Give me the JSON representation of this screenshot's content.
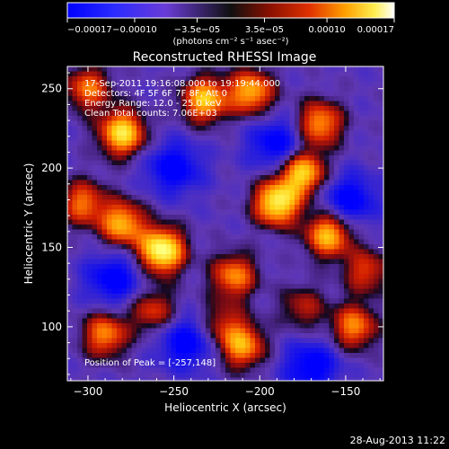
{
  "chart_data": {
    "type": "heatmap",
    "title": "Reconstructed RHESSI Image",
    "xlabel": "Heliocentric X (arcsec)",
    "ylabel": "Heliocentric Y (arcsec)",
    "xlim": [
      -312,
      -128
    ],
    "ylim": [
      66,
      264
    ],
    "x_ticks": [
      -300,
      -250,
      -200,
      -150
    ],
    "x_tick_labels": [
      "−300",
      "−250",
      "−200",
      "−150"
    ],
    "y_ticks": [
      100,
      150,
      200,
      250
    ],
    "y_tick_labels": [
      "100",
      "150",
      "200",
      "250"
    ],
    "colorbar": {
      "range": [
        -0.00017,
        0.00017
      ],
      "ticks": [
        -0.00017,
        -0.0001,
        -3.5e-05,
        3.5e-05,
        0.0001,
        0.00017
      ],
      "tick_labels": [
        "−0.00017",
        "−0.00010",
        "−3.5e−05",
        "3.5e−05",
        "0.00010",
        "0.00017"
      ],
      "units": "(photons cm⁻² s⁻¹ asec⁻²)"
    },
    "annotations": [
      "17-Sep-2011 19:16:08.000 to 19:19:44.000",
      "Detectors: 4F 5F 6F 7F 8F, Att 0",
      "Energy Range: 12.0 - 25.0 keV",
      "Clean    Total counts: 7.06E+03",
      "Position of Peak = [-257,148]"
    ],
    "peak_position": [
      -257,
      148
    ],
    "grid": false,
    "sources": [
      {
        "x": -257,
        "y": 148,
        "peak": 1.0
      },
      {
        "x": -280,
        "y": 222,
        "peak": 0.85
      },
      {
        "x": -300,
        "y": 250,
        "peak": 0.55
      },
      {
        "x": -232,
        "y": 243,
        "peak": 0.75
      },
      {
        "x": -205,
        "y": 248,
        "peak": 0.7
      },
      {
        "x": -165,
        "y": 228,
        "peak": 0.65
      },
      {
        "x": -190,
        "y": 178,
        "peak": 0.9
      },
      {
        "x": -175,
        "y": 197,
        "peak": 0.8
      },
      {
        "x": -160,
        "y": 158,
        "peak": 0.75
      },
      {
        "x": -215,
        "y": 132,
        "peak": 0.6
      },
      {
        "x": -280,
        "y": 165,
        "peak": 0.7
      },
      {
        "x": -303,
        "y": 178,
        "peak": 0.55
      },
      {
        "x": -290,
        "y": 95,
        "peak": 0.6
      },
      {
        "x": -262,
        "y": 110,
        "peak": 0.45
      },
      {
        "x": -222,
        "y": 102,
        "peak": 0.35
      },
      {
        "x": -210,
        "y": 88,
        "peak": 0.65
      },
      {
        "x": -145,
        "y": 100,
        "peak": 0.6
      },
      {
        "x": -138,
        "y": 135,
        "peak": 0.45
      },
      {
        "x": -175,
        "y": 112,
        "peak": 0.35
      }
    ],
    "dark_regions": [
      {
        "x": -250,
        "y": 200
      },
      {
        "x": -285,
        "y": 130
      },
      {
        "x": -190,
        "y": 215
      },
      {
        "x": -170,
        "y": 75
      },
      {
        "x": -148,
        "y": 180
      },
      {
        "x": -243,
        "y": 90
      }
    ]
  },
  "footer": {
    "date": "28-Aug-2013 11:22"
  }
}
